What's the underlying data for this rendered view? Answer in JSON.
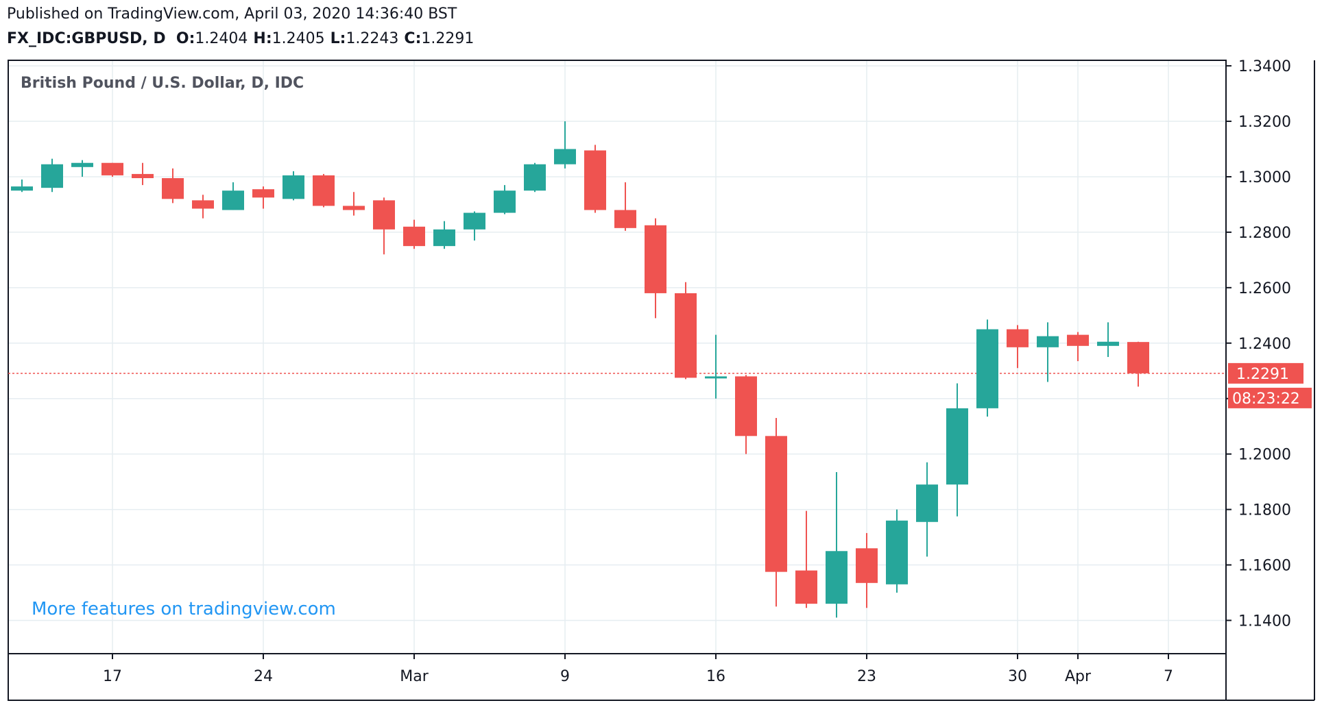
{
  "header": {
    "published": "Published on TradingView.com, April 03, 2020 14:36:40 BST",
    "symbol": "FX_IDC:GBPUSD, D",
    "o_label": "O:",
    "o_value": "1.2404",
    "h_label": "H:",
    "h_value": "1.2405",
    "l_label": "L:",
    "l_value": "1.2243",
    "c_label": "C:",
    "c_value": "1.2291"
  },
  "chart_title": "British Pound / U.S. Dollar, D, IDC",
  "watermark": "More features on tradingview.com",
  "colors": {
    "up": "#26a69a",
    "down": "#ef5350",
    "grid": "#e6edf1",
    "border": "#131722"
  },
  "chart_data": {
    "type": "candlestick",
    "title": "British Pound / U.S. Dollar, D, IDC",
    "ylim": [
      1.128,
      1.342
    ],
    "y_ticks": [
      "1.3400",
      "1.3200",
      "1.3000",
      "1.2800",
      "1.2600",
      "1.2400",
      "1.2200",
      "1.2000",
      "1.1800",
      "1.1600",
      "1.1400"
    ],
    "x_ticks": [
      {
        "index": 3,
        "label": "17"
      },
      {
        "index": 8,
        "label": "24"
      },
      {
        "index": 13,
        "label": "Mar"
      },
      {
        "index": 18,
        "label": "9"
      },
      {
        "index": 23,
        "label": "16"
      },
      {
        "index": 28,
        "label": "23"
      },
      {
        "index": 33,
        "label": "30"
      },
      {
        "index": 35,
        "label": "Apr"
      },
      {
        "index": 38,
        "label": "7"
      }
    ],
    "candles": [
      {
        "o": 1.295,
        "h": 1.299,
        "l": 1.2945,
        "c": 1.2965
      },
      {
        "o": 1.296,
        "h": 1.3065,
        "l": 1.2945,
        "c": 1.3045
      },
      {
        "o": 1.3035,
        "h": 1.306,
        "l": 1.3,
        "c": 1.305
      },
      {
        "o": 1.305,
        "h": 1.305,
        "l": 1.3,
        "c": 1.3005
      },
      {
        "o": 1.301,
        "h": 1.305,
        "l": 1.297,
        "c": 1.2995
      },
      {
        "o": 1.2995,
        "h": 1.303,
        "l": 1.2905,
        "c": 1.292
      },
      {
        "o": 1.2915,
        "h": 1.2935,
        "l": 1.285,
        "c": 1.2885
      },
      {
        "o": 1.288,
        "h": 1.298,
        "l": 1.288,
        "c": 1.295
      },
      {
        "o": 1.2955,
        "h": 1.2965,
        "l": 1.2885,
        "c": 1.2925
      },
      {
        "o": 1.292,
        "h": 1.302,
        "l": 1.2915,
        "c": 1.3005
      },
      {
        "o": 1.3005,
        "h": 1.301,
        "l": 1.289,
        "c": 1.2895
      },
      {
        "o": 1.2895,
        "h": 1.2945,
        "l": 1.286,
        "c": 1.288
      },
      {
        "o": 1.2915,
        "h": 1.2925,
        "l": 1.272,
        "c": 1.281
      },
      {
        "o": 1.282,
        "h": 1.2845,
        "l": 1.274,
        "c": 1.275
      },
      {
        "o": 1.275,
        "h": 1.284,
        "l": 1.274,
        "c": 1.281
      },
      {
        "o": 1.281,
        "h": 1.2875,
        "l": 1.277,
        "c": 1.287
      },
      {
        "o": 1.287,
        "h": 1.297,
        "l": 1.2865,
        "c": 1.295
      },
      {
        "o": 1.295,
        "h": 1.305,
        "l": 1.2945,
        "c": 1.3045
      },
      {
        "o": 1.3045,
        "h": 1.32,
        "l": 1.303,
        "c": 1.31
      },
      {
        "o": 1.3095,
        "h": 1.3115,
        "l": 1.287,
        "c": 1.288
      },
      {
        "o": 1.288,
        "h": 1.298,
        "l": 1.2805,
        "c": 1.2815
      },
      {
        "o": 1.2825,
        "h": 1.285,
        "l": 1.249,
        "c": 1.258
      },
      {
        "o": 1.258,
        "h": 1.262,
        "l": 1.227,
        "c": 1.2275
      },
      {
        "o": 1.228,
        "h": 1.243,
        "l": 1.22,
        "c": 1.228
      },
      {
        "o": 1.228,
        "h": 1.2285,
        "l": 1.2,
        "c": 1.2065
      },
      {
        "o": 1.2065,
        "h": 1.213,
        "l": 1.145,
        "c": 1.1575
      },
      {
        "o": 1.158,
        "h": 1.1795,
        "l": 1.1445,
        "c": 1.146
      },
      {
        "o": 1.146,
        "h": 1.1935,
        "l": 1.141,
        "c": 1.165
      },
      {
        "o": 1.166,
        "h": 1.1715,
        "l": 1.1445,
        "c": 1.1535
      },
      {
        "o": 1.153,
        "h": 1.18,
        "l": 1.15,
        "c": 1.176
      },
      {
        "o": 1.1755,
        "h": 1.197,
        "l": 1.163,
        "c": 1.189
      },
      {
        "o": 1.189,
        "h": 1.2255,
        "l": 1.1775,
        "c": 1.2165
      },
      {
        "o": 1.2165,
        "h": 1.2485,
        "l": 1.2135,
        "c": 1.245
      },
      {
        "o": 1.245,
        "h": 1.2465,
        "l": 1.231,
        "c": 1.2385
      },
      {
        "o": 1.2385,
        "h": 1.2475,
        "l": 1.226,
        "c": 1.2425
      },
      {
        "o": 1.243,
        "h": 1.244,
        "l": 1.2335,
        "c": 1.239
      },
      {
        "o": 1.239,
        "h": 1.2475,
        "l": 1.235,
        "c": 1.2405
      },
      {
        "o": 1.2404,
        "h": 1.2405,
        "l": 1.2243,
        "c": 1.2291
      }
    ],
    "last_price": "1.2291",
    "last_price_value": 1.2291,
    "countdown": "08:23:22"
  }
}
